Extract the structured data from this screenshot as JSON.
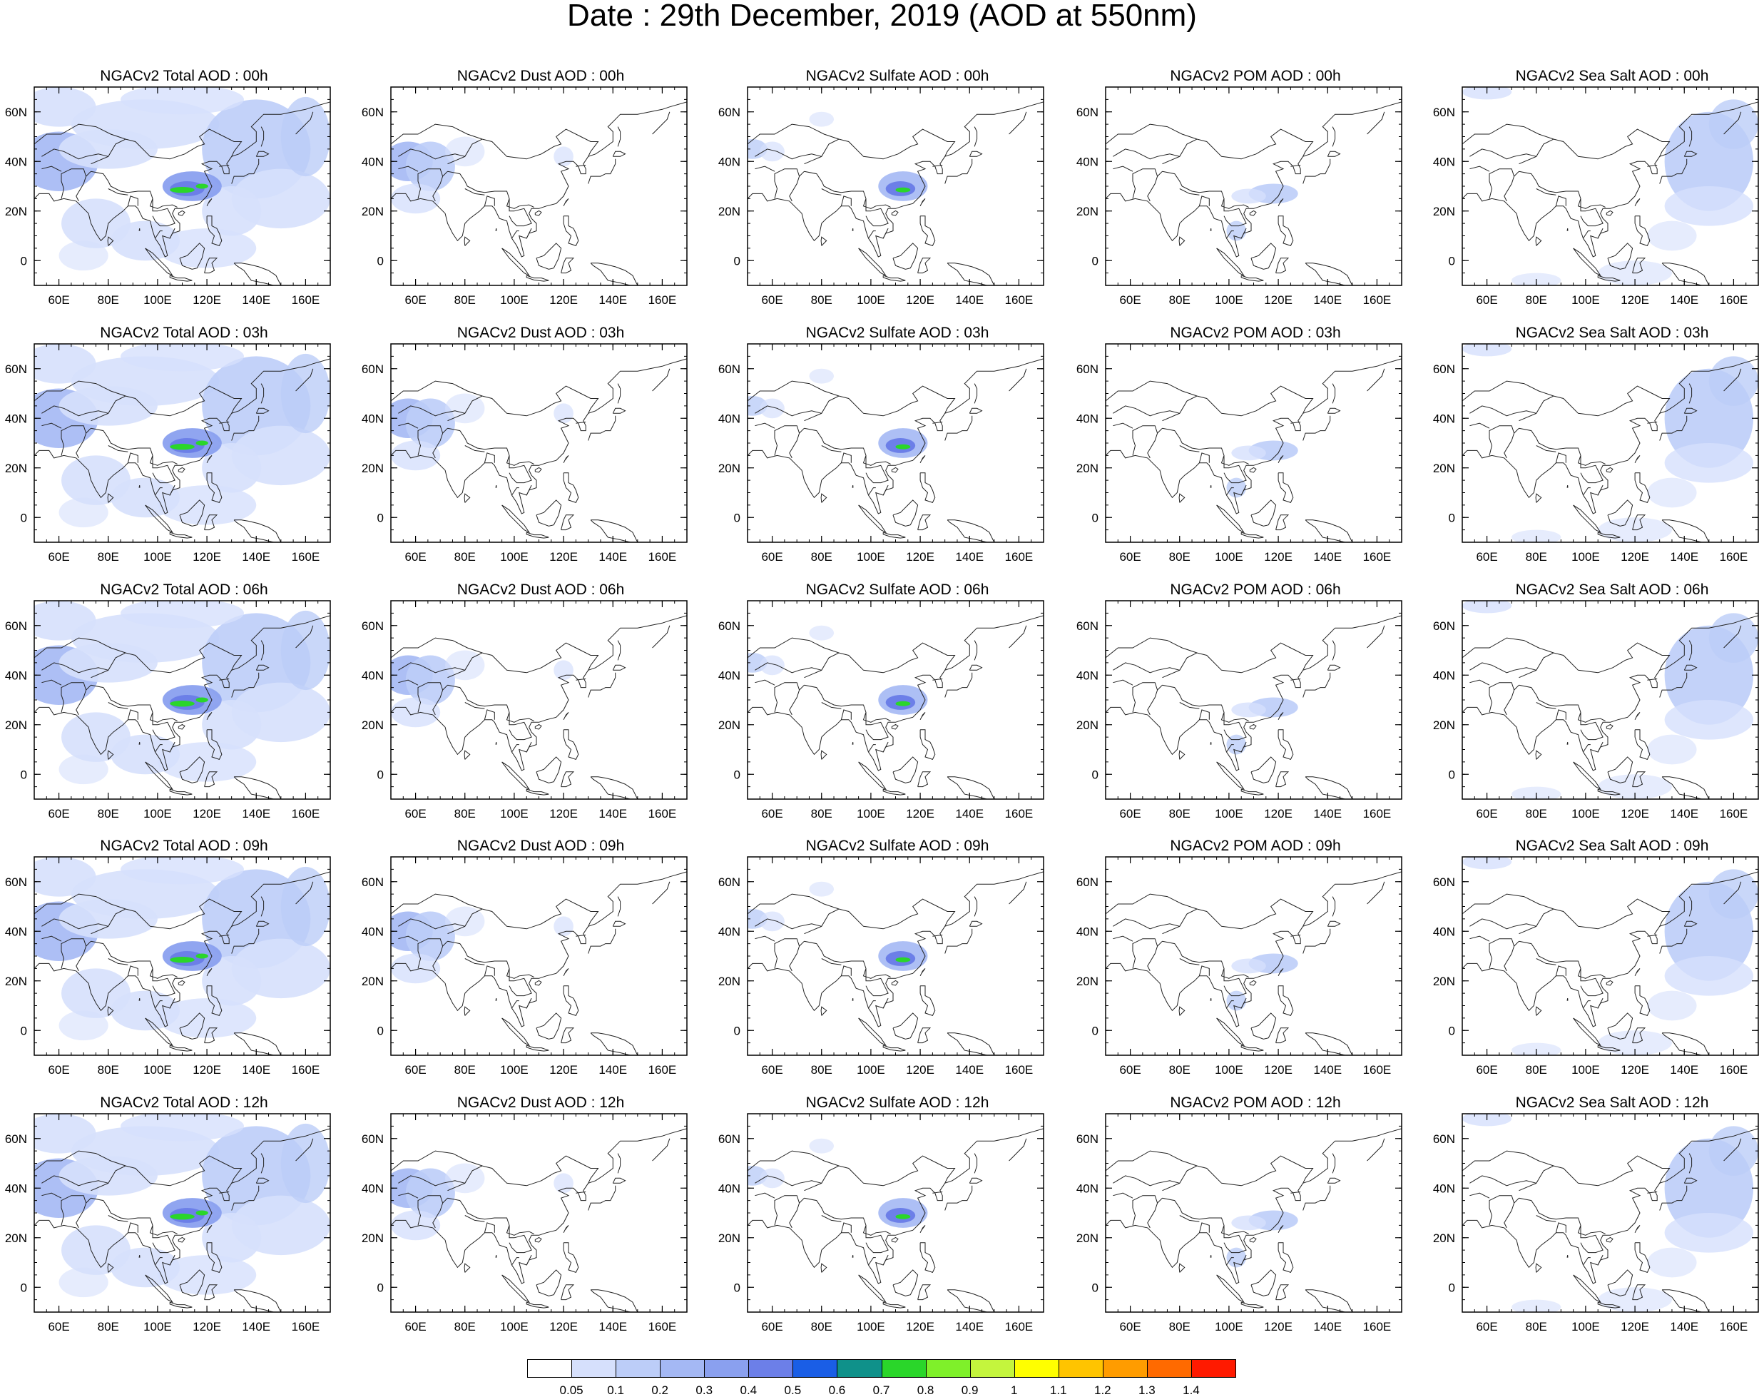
{
  "title": "Date : 29th December, 2019 (AOD at 550nm)",
  "panels": [
    [
      "NGACv2 Total AOD : 00h",
      "NGACv2 Dust AOD : 00h",
      "NGACv2 Sulfate AOD : 00h",
      "NGACv2 POM AOD : 00h",
      "NGACv2 Sea Salt AOD : 00h"
    ],
    [
      "NGACv2 Total AOD : 03h",
      "NGACv2 Dust AOD : 03h",
      "NGACv2 Sulfate AOD : 03h",
      "NGACv2 POM AOD : 03h",
      "NGACv2 Sea Salt AOD : 03h"
    ],
    [
      "NGACv2 Total AOD : 06h",
      "NGACv2 Dust AOD : 06h",
      "NGACv2 Sulfate AOD : 06h",
      "NGACv2 POM AOD : 06h",
      "NGACv2 Sea Salt AOD : 06h"
    ],
    [
      "NGACv2 Total AOD : 09h",
      "NGACv2 Dust AOD : 09h",
      "NGACv2 Sulfate AOD : 09h",
      "NGACv2 POM AOD : 09h",
      "NGACv2 Sea Salt  AOD : 09h"
    ],
    [
      "NGACv2 Total AOD  : 12h",
      "NGACv2 Dust AOD : 12h",
      "NGACv2 Sulfate AOD : 12h",
      "NGACv2 POM  AOD : 12h",
      "NGACv2 Sea Salt  AOD : 12h"
    ]
  ],
  "map": {
    "lon_range": [
      50,
      170
    ],
    "lat_range": [
      -10,
      70
    ],
    "x_ticks": [
      "60E",
      "80E",
      "100E",
      "120E",
      "140E",
      "160E"
    ],
    "x_tick_values": [
      60,
      80,
      100,
      120,
      140,
      160
    ],
    "y_ticks": [
      "0",
      "20N",
      "40N",
      "60N"
    ],
    "y_tick_values": [
      0,
      20,
      40,
      60
    ]
  },
  "colorbar": {
    "labels": [
      "0.05",
      "0.1",
      "0.2",
      "0.3",
      "0.4",
      "0.5",
      "0.6",
      "0.7",
      "0.8",
      "0.9",
      "1",
      "1.1",
      "1.2",
      "1.3",
      "1.4"
    ],
    "colors": [
      "#ffffff",
      "#d6e0fc",
      "#bccdf8",
      "#a4b8f4",
      "#8aa0ef",
      "#6c7fe8",
      "#1a5ee6",
      "#0f918a",
      "#2ad62a",
      "#7ff02a",
      "#c4f53d",
      "#ffff00",
      "#ffc400",
      "#ff9c00",
      "#ff6a00",
      "#ff1a00"
    ]
  },
  "species": {
    "total": {
      "coverage": "widespread",
      "plume": "strong"
    },
    "dust": {
      "coverage": "west",
      "plume": "none"
    },
    "sulfate": {
      "coverage": "east-china",
      "plume": "medium"
    },
    "pom": {
      "coverage": "southeast",
      "plume": "weak"
    },
    "seasalt": {
      "coverage": "ocean",
      "plume": "none"
    }
  }
}
